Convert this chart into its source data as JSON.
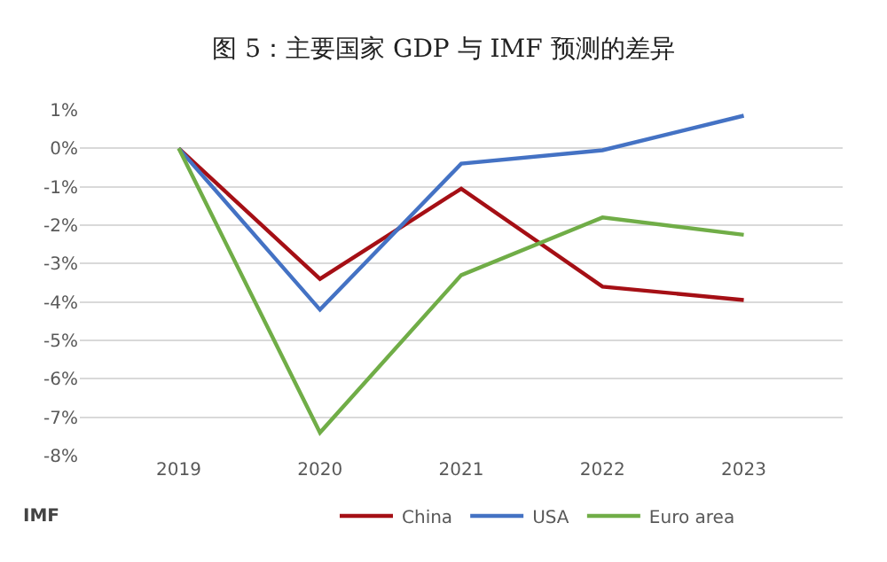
{
  "chart_data": {
    "type": "line",
    "title": "图 5：主要国家 GDP 与 IMF 预测的差异",
    "categories": [
      "2019",
      "2020",
      "2021",
      "2022",
      "2023"
    ],
    "series": [
      {
        "name": "China",
        "color": "#a50f15",
        "values": [
          0,
          -3.4,
          -1.05,
          -3.6,
          -3.95
        ]
      },
      {
        "name": "USA",
        "color": "#4472c4",
        "values": [
          0,
          -4.2,
          -0.4,
          -0.05,
          0.85
        ]
      },
      {
        "name": "Euro area",
        "color": "#70ad47",
        "values": [
          0,
          -7.4,
          -3.3,
          -1.8,
          -2.25
        ]
      }
    ],
    "ylim": [
      -8,
      1
    ],
    "yticks": [
      {
        "value": -8,
        "label": "-8%"
      },
      {
        "value": -7,
        "label": "-7%"
      },
      {
        "value": -6,
        "label": "-6%"
      },
      {
        "value": -5,
        "label": "-5%"
      },
      {
        "value": -4,
        "label": "-4%"
      },
      {
        "value": -3,
        "label": "-3%"
      },
      {
        "value": -2,
        "label": "-2%"
      },
      {
        "value": -1,
        "label": "-1%"
      },
      {
        "value": 0,
        "label": "0%"
      },
      {
        "value": 1,
        "label": "1%"
      }
    ],
    "grid": "y",
    "legend": "bottom",
    "marker": "none",
    "line_style": "solid",
    "annotations": [
      "IMF"
    ]
  }
}
